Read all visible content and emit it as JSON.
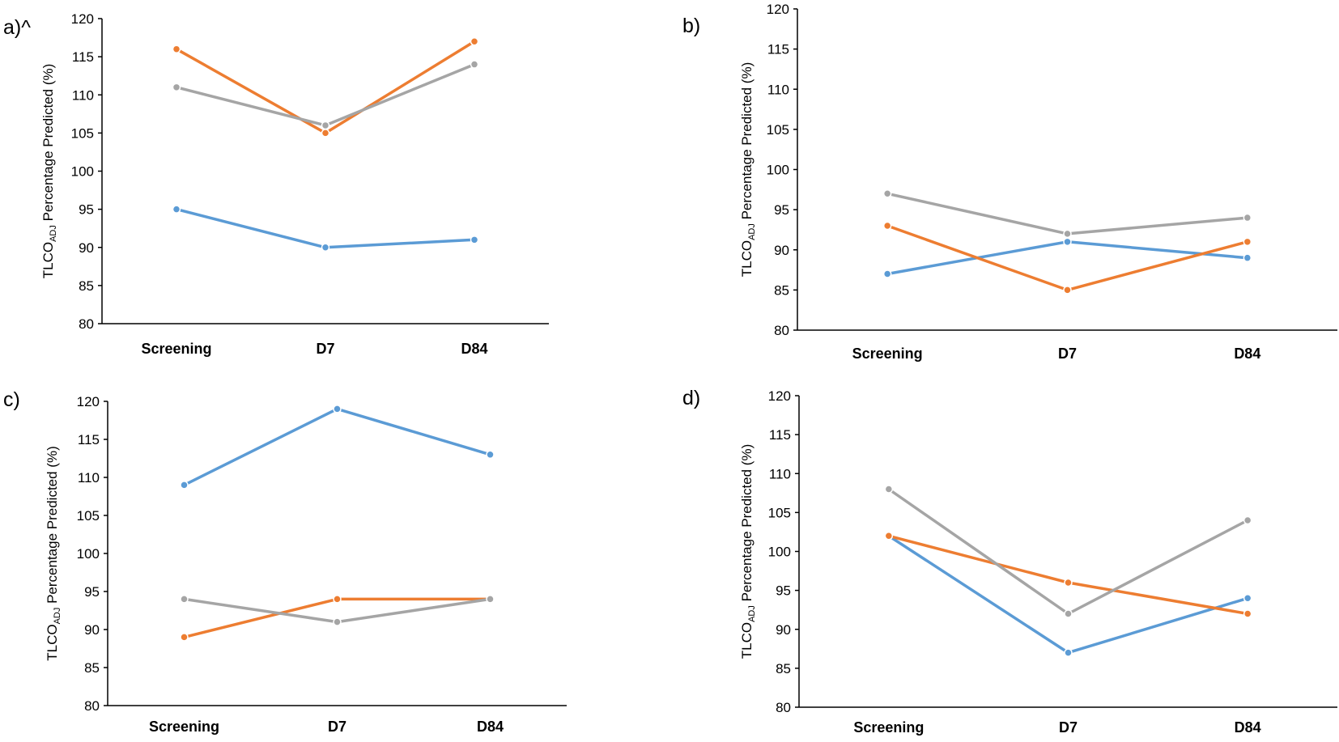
{
  "chart_data": [
    {
      "type": "line",
      "panel_label": "a)^",
      "ylabel": {
        "main": "TLCO",
        "subscript": "ADJ",
        "rest": " Percentage Predicted (%)"
      },
      "categories": [
        "Screening",
        "D7",
        "D84"
      ],
      "ylim": [
        80,
        120
      ],
      "yticks": [
        80,
        85,
        90,
        95,
        100,
        105,
        110,
        115,
        120
      ],
      "grid": false,
      "series": [
        {
          "name": "blue",
          "color": "#5B9BD5",
          "values": [
            95,
            90,
            91
          ]
        },
        {
          "name": "orange",
          "color": "#ED7D31",
          "values": [
            116,
            105,
            117
          ]
        },
        {
          "name": "gray",
          "color": "#A5A5A5",
          "values": [
            111,
            106,
            114
          ]
        }
      ]
    },
    {
      "type": "line",
      "panel_label": "b)",
      "ylabel": {
        "main": "TLCO",
        "subscript": "ADJ",
        "rest": " Percentage Predicted (%)"
      },
      "categories": [
        "Screening",
        "D7",
        "D84"
      ],
      "ylim": [
        80,
        120
      ],
      "yticks": [
        80,
        85,
        90,
        95,
        100,
        105,
        110,
        115,
        120
      ],
      "grid": false,
      "series": [
        {
          "name": "blue",
          "color": "#5B9BD5",
          "values": [
            87,
            91,
            89
          ]
        },
        {
          "name": "orange",
          "color": "#ED7D31",
          "values": [
            93,
            85,
            91
          ]
        },
        {
          "name": "gray",
          "color": "#A5A5A5",
          "values": [
            97,
            92,
            94
          ]
        }
      ]
    },
    {
      "type": "line",
      "panel_label": "c)",
      "ylabel": {
        "main": "TLCO",
        "subscript": "ADJ",
        "rest": " Percentage Predicted (%)"
      },
      "categories": [
        "Screening",
        "D7",
        "D84"
      ],
      "ylim": [
        80,
        120
      ],
      "yticks": [
        80,
        85,
        90,
        95,
        100,
        105,
        110,
        115,
        120
      ],
      "grid": false,
      "series": [
        {
          "name": "blue",
          "color": "#5B9BD5",
          "values": [
            109,
            119,
            113
          ]
        },
        {
          "name": "orange",
          "color": "#ED7D31",
          "values": [
            89,
            94,
            94
          ]
        },
        {
          "name": "gray",
          "color": "#A5A5A5",
          "values": [
            94,
            91,
            94
          ]
        }
      ]
    },
    {
      "type": "line",
      "panel_label": "d)",
      "ylabel": {
        "main": "TLCO",
        "subscript": "ADJ",
        "rest": " Percentage Predicted (%)"
      },
      "categories": [
        "Screening",
        "D7",
        "D84"
      ],
      "ylim": [
        80,
        120
      ],
      "yticks": [
        80,
        85,
        90,
        95,
        100,
        105,
        110,
        115,
        120
      ],
      "grid": false,
      "series": [
        {
          "name": "blue",
          "color": "#5B9BD5",
          "values": [
            102,
            87,
            94
          ]
        },
        {
          "name": "orange",
          "color": "#ED7D31",
          "values": [
            102,
            96,
            92
          ]
        },
        {
          "name": "gray",
          "color": "#A5A5A5",
          "values": [
            108,
            92,
            104
          ]
        }
      ]
    }
  ]
}
